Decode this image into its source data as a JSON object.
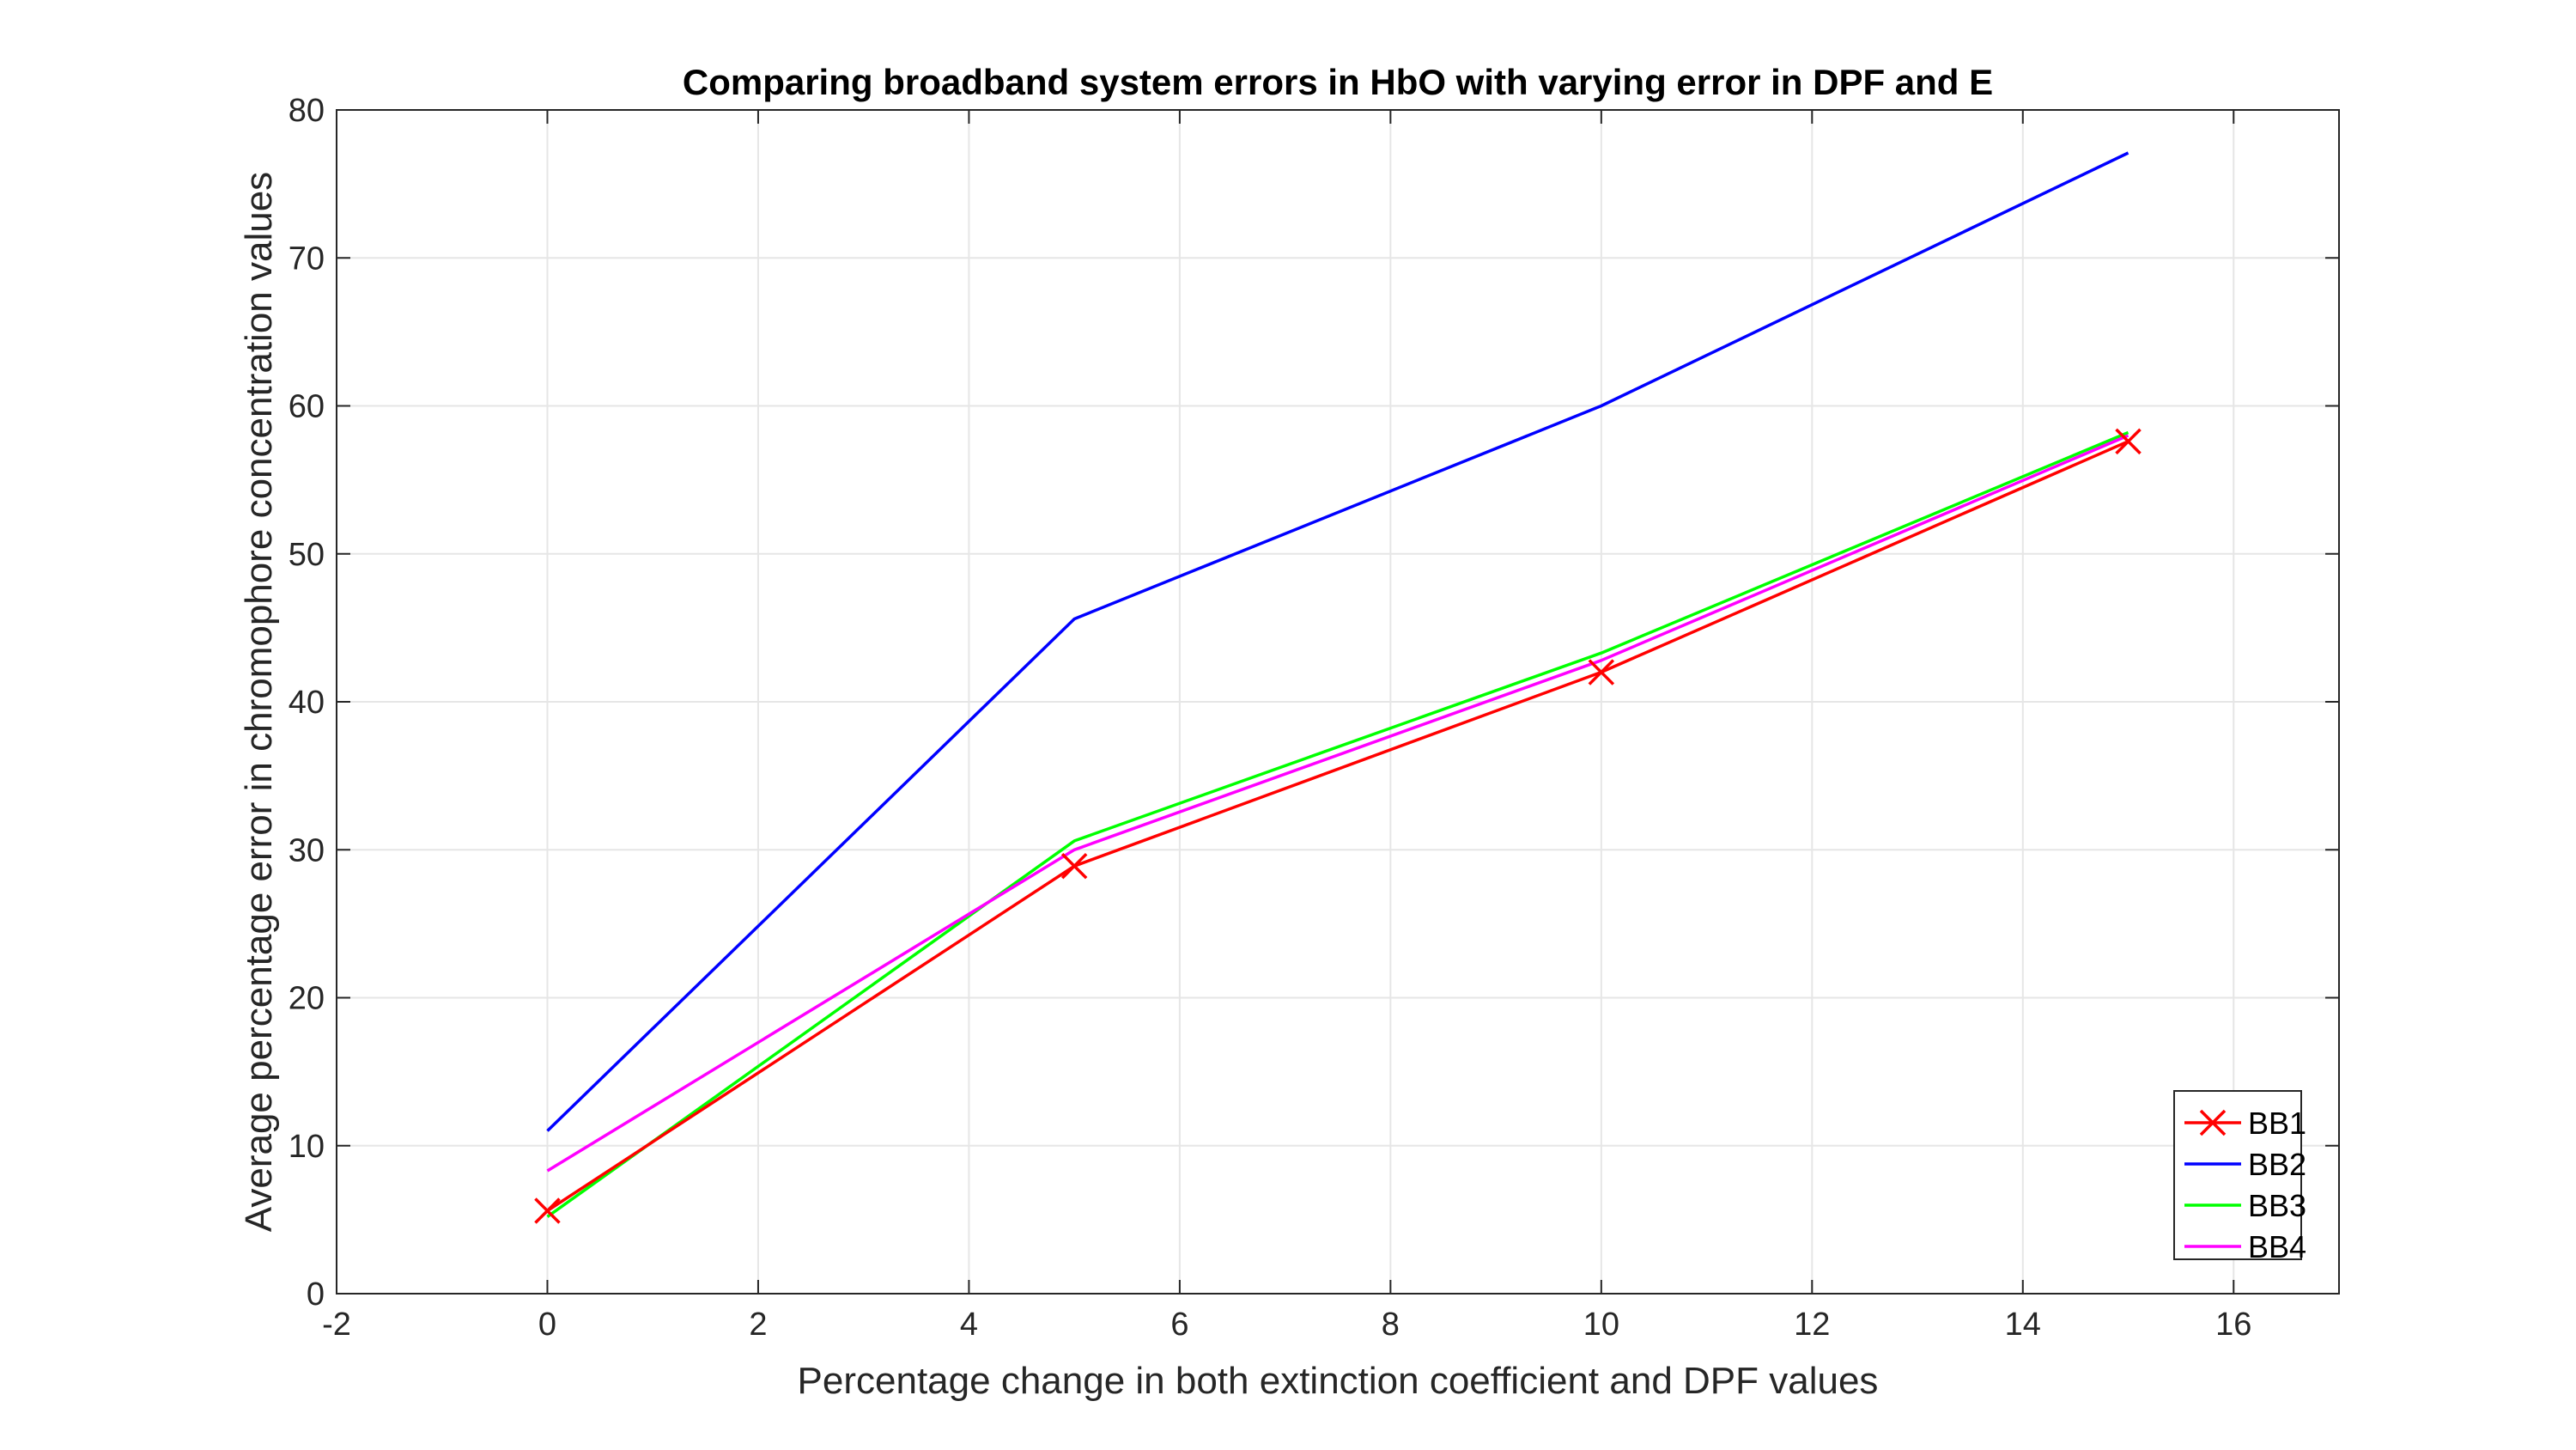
{
  "chart_data": {
    "type": "line",
    "title": "Comparing broadband system errors in HbO with varying error in DPF and E",
    "xlabel": "Percentage change in both extinction coefficient and DPF values",
    "ylabel": "Average percentage error in chromophore concentration values",
    "xlim": [
      -2,
      17
    ],
    "ylim": [
      0,
      80
    ],
    "xticks": [
      -2,
      0,
      2,
      4,
      6,
      8,
      10,
      12,
      14,
      16
    ],
    "yticks": [
      0,
      10,
      20,
      30,
      40,
      50,
      60,
      70,
      80
    ],
    "grid": true,
    "legend_position": "bottom-right",
    "x": [
      0,
      5,
      10,
      15
    ],
    "series": [
      {
        "name": "BB1",
        "values": [
          5.6,
          28.9,
          42.0,
          57.6
        ],
        "color": "#ff0000",
        "marker": "x"
      },
      {
        "name": "BB2",
        "values": [
          11.0,
          45.6,
          60.0,
          77.1
        ],
        "color": "#0000ff",
        "marker": "none"
      },
      {
        "name": "BB3",
        "values": [
          5.2,
          30.6,
          43.3,
          58.2
        ],
        "color": "#00ff00",
        "marker": "none"
      },
      {
        "name": "BB4",
        "values": [
          8.3,
          30.0,
          42.8,
          58.0
        ],
        "color": "#ff00ff",
        "marker": "none"
      }
    ]
  }
}
